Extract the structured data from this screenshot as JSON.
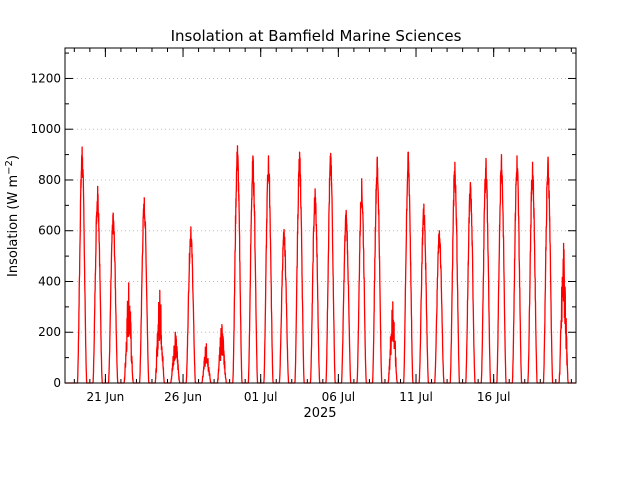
{
  "chart_data": {
    "type": "line",
    "title": "Insolation at Bamfield Marine Sciences",
    "ylabel": "Insolation (W m^-2)",
    "xlabel": "2025",
    "ylim": [
      0,
      1320
    ],
    "yticks": [
      0,
      200,
      400,
      600,
      800,
      1000,
      1200
    ],
    "grid": "horizontal dotted",
    "xlim_days": [
      -1.6,
      31.3
    ],
    "xticks": [
      {
        "label": "21 Jun",
        "day": 1
      },
      {
        "label": "26 Jun",
        "day": 6
      },
      {
        "label": "01 Jul",
        "day": 11
      },
      {
        "label": "06 Jul",
        "day": 16
      },
      {
        "label": "11 Jul",
        "day": 21
      },
      {
        "label": "16 Jul",
        "day": 26
      }
    ],
    "series": [
      {
        "color": "#ff0000",
        "daily_peak_dates": [
          "19 Jun",
          "20 Jun",
          "21 Jun",
          "22 Jun",
          "23 Jun",
          "24 Jun",
          "25 Jun",
          "26 Jun",
          "27 Jun",
          "28 Jun",
          "29 Jun",
          "30 Jun",
          "01 Jul",
          "02 Jul",
          "03 Jul",
          "04 Jul",
          "05 Jul",
          "06 Jul",
          "07 Jul",
          "08 Jul",
          "09 Jul",
          "10 Jul",
          "11 Jul",
          "12 Jul",
          "13 Jul",
          "14 Jul",
          "15 Jul",
          "16 Jul",
          "17 Jul",
          "18 Jul",
          "19 Jul",
          "20 Jul",
          "21 Jul"
        ],
        "daily_peaks": [
          930,
          775,
          670,
          395,
          730,
          365,
          200,
          615,
          155,
          230,
          935,
          895,
          895,
          605,
          910,
          765,
          905,
          680,
          805,
          890,
          320,
          910,
          705,
          600,
          870,
          790,
          885,
          900,
          895,
          870,
          890,
          550,
          0
        ]
      }
    ]
  }
}
